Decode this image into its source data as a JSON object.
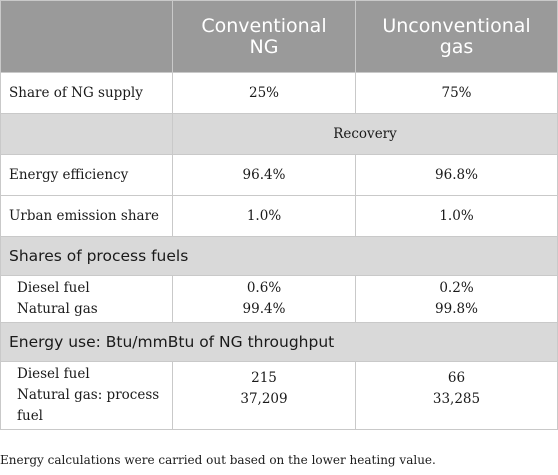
{
  "header": {
    "col1": "",
    "col2": [
      "Conventional",
      "NG"
    ],
    "col3": [
      "Unconventional",
      "gas"
    ]
  },
  "rows": {
    "share": {
      "label": "Share of NG supply",
      "conv": "25%",
      "unconv": "75%"
    },
    "recovery": {
      "label": "Recovery"
    },
    "efficiency": {
      "label": "Energy efficiency",
      "conv": "96.4%",
      "unconv": "96.8%"
    },
    "urban": {
      "label": "Urban emission share",
      "conv": "1.0%",
      "unconv": "1.0%"
    }
  },
  "process_fuels": {
    "title": "Shares of process fuels",
    "items": [
      {
        "label": "Diesel fuel",
        "conv": "0.6%",
        "unconv": "0.2%"
      },
      {
        "label": "Natural gas",
        "conv": "99.4%",
        "unconv": "99.8%"
      }
    ]
  },
  "energy_use": {
    "title": "Energy use: Btu/mmBtu of NG throughput",
    "items": [
      {
        "label": "Diesel fuel",
        "conv": "215",
        "unconv": "66"
      },
      {
        "label_lines": [
          "Natural gas: process",
          "fuel"
        ],
        "conv": "37,209",
        "unconv": "33,285"
      }
    ]
  },
  "footnote": "Energy calculations were carried out based on the lower heating value."
}
